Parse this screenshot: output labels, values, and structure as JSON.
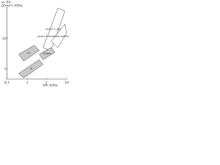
{
  "chart_data": {
    "type": "region",
    "y_label": "a₀, KIc",
    "y_unit": "(J/mm²) (GPa)",
    "x_label": "H/V (GPa)",
    "x_log": true,
    "y_log": true,
    "xlim": [
      0.3,
      10
    ],
    "ylim": [
      0.46,
      110
    ],
    "xticks": [
      {
        "value": 0.3,
        "label": "0,3"
      },
      1,
      3,
      10
    ],
    "yticks": [
      1,
      10
    ],
    "regions": [
      {
        "name": "Aciers C alliés",
        "color": "#ffffff",
        "x": [
          2.5,
          6,
          9,
          4
        ],
        "y": [
          5,
          100,
          80,
          4
        ]
      },
      {
        "name": "Aciers à ténabilité améliorée",
        "color": "#ffffff",
        "x": [
          4,
          9,
          10,
          6
        ],
        "y": [
          8,
          30,
          15,
          5
        ]
      },
      {
        "name": "Fontes",
        "color": "#c8c8c8",
        "x": [
          2,
          4,
          5,
          2.5
        ],
        "y": [
          3,
          5,
          3.5,
          2
        ]
      },
      {
        "name": "Cu",
        "color": "#c8c8c8",
        "x": [
          0.6,
          1.5,
          2,
          0.8
        ],
        "y": [
          3,
          6,
          4,
          1.8
        ]
      },
      {
        "name": "Al",
        "color": "#c8c8c8",
        "x": [
          0.6,
          2,
          2.5,
          0.8
        ],
        "y": [
          0.7,
          2,
          1.4,
          0.5
        ]
      }
    ]
  }
}
